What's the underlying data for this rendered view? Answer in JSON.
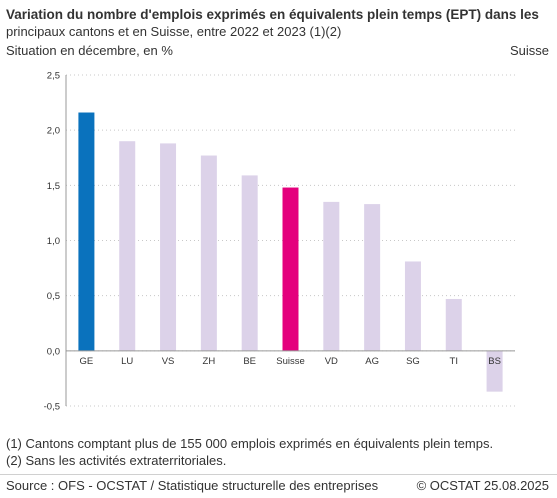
{
  "header": {
    "title": "Variation du nombre d'emplois exprimés en équivalents plein temps (EPT) dans les",
    "subtitle": "principaux cantons et en Suisse, entre 2022 et 2023 (1)(2)",
    "unit_label": "Situation en décembre, en %",
    "region_label": "Suisse"
  },
  "footer": {
    "note1": "(1) Cantons comptant plus de 155 000 emplois exprimés en équivalents plein temps.",
    "note2": "(2) Sans les activités extraterritoriales.",
    "source": "Source : OFS - OCSTAT / Statistique structurelle des entreprises",
    "copyright": "© OCSTAT 25.08.2025"
  },
  "colors": {
    "highlight_ge": "#0a72bd",
    "highlight_ch": "#e4007d",
    "other": "#dcd2e9",
    "grid": "#c8c8c8"
  },
  "chart_data": {
    "type": "bar",
    "categories": [
      "GE",
      "LU",
      "VS",
      "ZH",
      "BE",
      "Suisse",
      "VD",
      "AG",
      "SG",
      "TI",
      "BS"
    ],
    "values": [
      2.16,
      1.9,
      1.88,
      1.77,
      1.59,
      1.48,
      1.35,
      1.33,
      0.81,
      0.47,
      -0.37
    ],
    "bar_colors": [
      "highlight_ge",
      "other",
      "other",
      "other",
      "other",
      "highlight_ch",
      "other",
      "other",
      "other",
      "other",
      "other"
    ],
    "ylim": [
      -0.5,
      2.5
    ],
    "yticks": [
      "-0,5",
      "0,0",
      "0,5",
      "1,0",
      "1,5",
      "2,0",
      "2,5"
    ],
    "grid": true,
    "xlabel": "",
    "ylabel": ""
  }
}
